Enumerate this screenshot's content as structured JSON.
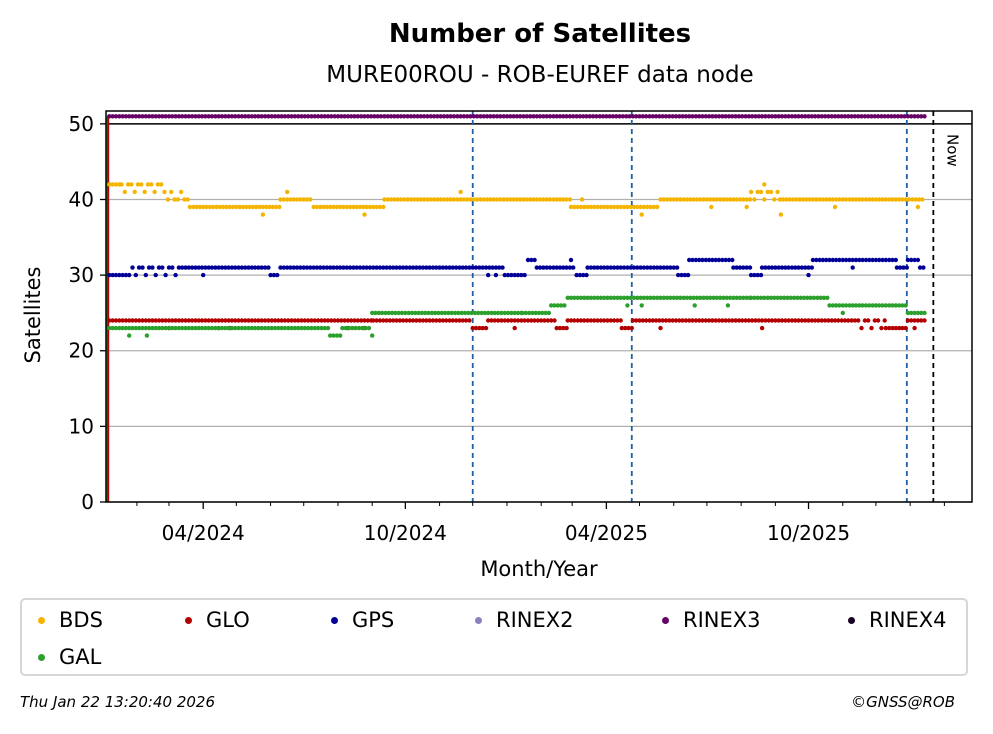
{
  "chart_data": {
    "type": "scatter",
    "title": "Number of Satellites",
    "subtitle": "MURE00ROU - ROB-EUREF data node",
    "xlabel": "Month/Year",
    "ylabel": "Satellites",
    "x_range": [
      "2024-01-04",
      "2026-02-26"
    ],
    "ylim": [
      0,
      51.7
    ],
    "y_ticks": [
      0,
      10,
      20,
      30,
      40,
      50
    ],
    "x_ticks": [
      {
        "date": "2024-04-01",
        "label": "04/2024"
      },
      {
        "date": "2024-10-01",
        "label": "10/2024"
      },
      {
        "date": "2025-04-01",
        "label": "04/2025"
      },
      {
        "date": "2025-10-01",
        "label": "10/2025"
      }
    ],
    "x_minor_ticks": [
      "2024-02-01",
      "2024-03-01",
      "2024-05-01",
      "2024-06-01",
      "2024-07-01",
      "2024-08-01",
      "2024-09-01",
      "2024-11-01",
      "2024-12-01",
      "2025-01-01",
      "2025-02-01",
      "2025-03-01",
      "2025-05-01",
      "2025-06-01",
      "2025-07-01",
      "2025-08-01",
      "2025-09-01",
      "2025-11-01",
      "2025-12-01",
      "2026-01-01",
      "2026-02-01"
    ],
    "grid": "y-major",
    "vlines": [
      {
        "date": "2024-12-01",
        "style": "dashed",
        "color": "#1f5fa8"
      },
      {
        "date": "2025-04-24",
        "style": "dashed",
        "color": "#1f5fa8"
      },
      {
        "date": "2025-12-29",
        "style": "dashed",
        "color": "#1f5fa8"
      },
      {
        "date": "2026-01-22",
        "style": "dashed",
        "color": "#000000",
        "label": "Now"
      }
    ],
    "hlines": [
      {
        "y": 50,
        "color": "#000000"
      }
    ],
    "data_start": "2024-01-07",
    "data_end": "2026-01-15",
    "series": [
      {
        "name": "BDS",
        "color": "#f5b400",
        "segments": [
          {
            "from": "2024-01-07",
            "to": "2024-01-18",
            "value": 42
          },
          {
            "from": "2024-01-18",
            "to": "2024-02-29",
            "value": 42,
            "alt": 41
          },
          {
            "from": "2024-02-29",
            "to": "2024-03-20",
            "value": 40,
            "alt": 41
          },
          {
            "from": "2024-03-20",
            "to": "2024-06-10",
            "value": 39
          },
          {
            "from": "2024-06-10",
            "to": "2024-07-10",
            "value": 40
          },
          {
            "from": "2024-07-10",
            "to": "2024-09-12",
            "value": 39
          },
          {
            "from": "2024-09-12",
            "to": "2025-02-28",
            "value": 40
          },
          {
            "from": "2025-02-28",
            "to": "2025-05-20",
            "value": 39
          },
          {
            "from": "2025-05-20",
            "to": "2025-08-10",
            "value": 40
          },
          {
            "from": "2025-08-10",
            "to": "2025-09-05",
            "value": 41,
            "alt": 40
          },
          {
            "from": "2025-09-05",
            "to": "2026-01-15",
            "value": 40
          }
        ],
        "outliers": [
          {
            "date": "2024-06-16",
            "value": 41
          },
          {
            "date": "2024-05-25",
            "value": 38
          },
          {
            "date": "2024-08-25",
            "value": 38
          },
          {
            "date": "2024-11-20",
            "value": 41
          },
          {
            "date": "2025-03-10",
            "value": 40
          },
          {
            "date": "2025-05-03",
            "value": 38
          },
          {
            "date": "2025-07-05",
            "value": 39
          },
          {
            "date": "2025-08-06",
            "value": 39
          },
          {
            "date": "2025-08-22",
            "value": 42
          },
          {
            "date": "2025-09-06",
            "value": 38
          },
          {
            "date": "2025-10-25",
            "value": 39
          },
          {
            "date": "2026-01-08",
            "value": 39
          }
        ]
      },
      {
        "name": "GLO",
        "color": "#b30000",
        "segments": [
          {
            "from": "2024-01-07",
            "to": "2024-09-02",
            "value": 24
          },
          {
            "from": "2024-09-02",
            "to": "2024-12-01",
            "value": 24
          },
          {
            "from": "2024-12-01",
            "to": "2024-12-15",
            "value": 23
          },
          {
            "from": "2024-12-15",
            "to": "2025-02-15",
            "value": 24
          },
          {
            "from": "2025-02-15",
            "to": "2025-02-25",
            "value": 23
          },
          {
            "from": "2025-02-25",
            "to": "2025-04-15",
            "value": 24
          },
          {
            "from": "2025-04-15",
            "to": "2025-04-25",
            "value": 23
          },
          {
            "from": "2025-04-25",
            "to": "2025-11-15",
            "value": 24
          },
          {
            "from": "2025-11-15",
            "to": "2025-12-10",
            "value": 24,
            "alt": 23
          },
          {
            "from": "2025-12-10",
            "to": "2025-12-30",
            "value": 23
          },
          {
            "from": "2025-12-30",
            "to": "2026-01-15",
            "value": 24
          }
        ],
        "outliers": [
          {
            "date": "2024-03-01",
            "value": 23
          },
          {
            "date": "2024-04-15",
            "value": 23
          },
          {
            "date": "2024-04-25",
            "value": 23
          },
          {
            "date": "2024-08-10",
            "value": 23
          },
          {
            "date": "2024-08-25",
            "value": 23
          },
          {
            "date": "2025-01-08",
            "value": 23
          },
          {
            "date": "2025-05-20",
            "value": 23
          },
          {
            "date": "2025-08-20",
            "value": 23
          },
          {
            "date": "2026-01-05",
            "value": 23
          }
        ]
      },
      {
        "name": "GPS",
        "color": "#000099",
        "segments": [
          {
            "from": "2024-01-07",
            "to": "2024-01-28",
            "value": 30
          },
          {
            "from": "2024-01-28",
            "to": "2024-03-10",
            "value": 31,
            "alt": 30
          },
          {
            "from": "2024-03-10",
            "to": "2024-06-01",
            "value": 31
          },
          {
            "from": "2024-06-01",
            "to": "2024-06-10",
            "value": 30
          },
          {
            "from": "2024-06-10",
            "to": "2024-12-30",
            "value": 31
          },
          {
            "from": "2024-12-30",
            "to": "2025-01-20",
            "value": 30
          },
          {
            "from": "2025-01-20",
            "to": "2025-01-28",
            "value": 32
          },
          {
            "from": "2025-01-28",
            "to": "2025-03-05",
            "value": 31
          },
          {
            "from": "2025-03-05",
            "to": "2025-03-15",
            "value": 30
          },
          {
            "from": "2025-03-15",
            "to": "2025-06-05",
            "value": 31
          },
          {
            "from": "2025-06-05",
            "to": "2025-06-15",
            "value": 30
          },
          {
            "from": "2025-06-15",
            "to": "2025-07-25",
            "value": 32
          },
          {
            "from": "2025-07-25",
            "to": "2025-08-10",
            "value": 31
          },
          {
            "from": "2025-08-10",
            "to": "2025-08-20",
            "value": 30
          },
          {
            "from": "2025-08-20",
            "to": "2025-10-05",
            "value": 31
          },
          {
            "from": "2025-10-05",
            "to": "2025-12-20",
            "value": 32
          },
          {
            "from": "2025-12-20",
            "to": "2025-12-30",
            "value": 31
          },
          {
            "from": "2025-12-30",
            "to": "2026-01-10",
            "value": 32
          },
          {
            "from": "2026-01-10",
            "to": "2026-01-15",
            "value": 31
          }
        ],
        "outliers": [
          {
            "date": "2024-04-01",
            "value": 30
          },
          {
            "date": "2024-12-15",
            "value": 30
          },
          {
            "date": "2024-12-22",
            "value": 30
          },
          {
            "date": "2025-02-28",
            "value": 32
          },
          {
            "date": "2025-10-01",
            "value": 30
          },
          {
            "date": "2025-11-10",
            "value": 31
          }
        ]
      },
      {
        "name": "RINEX2",
        "color": "#8c7fbf",
        "segments": [],
        "outliers": []
      },
      {
        "name": "RINEX3",
        "color": "#660066",
        "segments": [
          {
            "from": "2024-01-07",
            "to": "2026-01-15",
            "value": 51
          }
        ],
        "outliers": []
      },
      {
        "name": "RINEX4",
        "color": "#1a0022",
        "segments": [],
        "outliers": []
      },
      {
        "name": "GAL",
        "color": "#2ca02c",
        "segments": [
          {
            "from": "2024-01-07",
            "to": "2024-07-25",
            "value": 23
          },
          {
            "from": "2024-07-25",
            "to": "2024-08-05",
            "value": 22
          },
          {
            "from": "2024-08-05",
            "to": "2024-09-01",
            "value": 23
          },
          {
            "from": "2024-09-01",
            "to": "2025-01-15",
            "value": 25
          },
          {
            "from": "2025-01-15",
            "to": "2025-02-10",
            "value": 25
          },
          {
            "from": "2025-02-10",
            "to": "2025-02-25",
            "value": 26
          },
          {
            "from": "2025-02-25",
            "to": "2025-08-10",
            "value": 27
          },
          {
            "from": "2025-08-10",
            "to": "2025-10-20",
            "value": 27
          },
          {
            "from": "2025-10-20",
            "to": "2025-12-30",
            "value": 26
          },
          {
            "from": "2025-12-30",
            "to": "2026-01-15",
            "value": 25
          }
        ],
        "outliers": [
          {
            "date": "2024-01-25",
            "value": 22
          },
          {
            "date": "2024-02-10",
            "value": 22
          },
          {
            "date": "2024-09-01",
            "value": 22
          },
          {
            "date": "2025-04-20",
            "value": 26
          },
          {
            "date": "2025-05-03",
            "value": 26
          },
          {
            "date": "2025-06-20",
            "value": 26
          },
          {
            "date": "2025-07-20",
            "value": 26
          },
          {
            "date": "2025-11-01",
            "value": 25
          }
        ]
      }
    ],
    "start_markers": [
      {
        "date": "2024-01-05",
        "color": "#2ca02c",
        "from": 0,
        "to": 51
      },
      {
        "date": "2024-01-06",
        "color": "#b30000",
        "from": 0,
        "to": 51
      }
    ],
    "legend": {
      "placement": "bottom",
      "entries": [
        "BDS",
        "GLO",
        "GPS",
        "RINEX2",
        "RINEX3",
        "RINEX4",
        "GAL"
      ]
    },
    "now_label": "Now"
  },
  "footer": {
    "timestamp": "Thu Jan 22 13:20:40 2026",
    "credit": "©GNSS@ROB"
  }
}
